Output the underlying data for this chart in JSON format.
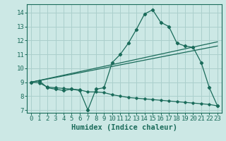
{
  "title": "",
  "xlabel": "Humidex (Indice chaleur)",
  "bg_color": "#cce8e5",
  "grid_color": "#aacfcc",
  "line_color": "#1a6b5a",
  "xlim": [
    -0.5,
    23.5
  ],
  "ylim": [
    6.8,
    14.6
  ],
  "xticks": [
    0,
    1,
    2,
    3,
    4,
    5,
    6,
    7,
    8,
    9,
    10,
    11,
    12,
    13,
    14,
    15,
    16,
    17,
    18,
    19,
    20,
    21,
    22,
    23
  ],
  "yticks": [
    7,
    8,
    9,
    10,
    11,
    12,
    13,
    14
  ],
  "line1_x": [
    0,
    1,
    2,
    3,
    4,
    5,
    6,
    7,
    8,
    9,
    10,
    11,
    12,
    13,
    14,
    15,
    16,
    17,
    18,
    19,
    20,
    21,
    22,
    23
  ],
  "line1_y": [
    9.0,
    9.1,
    8.6,
    8.5,
    8.4,
    8.5,
    8.4,
    7.0,
    8.5,
    8.6,
    10.4,
    11.0,
    11.8,
    12.8,
    13.9,
    14.2,
    13.3,
    13.0,
    11.8,
    11.6,
    11.5,
    10.4,
    8.6,
    7.3
  ],
  "line2_x": [
    0,
    23
  ],
  "line2_y": [
    9.0,
    11.9
  ],
  "line3_x": [
    0,
    23
  ],
  "line3_y": [
    9.0,
    11.6
  ],
  "line4_x": [
    0,
    1,
    2,
    3,
    4,
    5,
    6,
    7,
    8,
    9,
    10,
    11,
    12,
    13,
    14,
    15,
    16,
    17,
    18,
    19,
    20,
    21,
    22,
    23
  ],
  "line4_y": [
    9.0,
    8.95,
    8.65,
    8.6,
    8.55,
    8.5,
    8.45,
    8.3,
    8.3,
    8.25,
    8.1,
    8.0,
    7.9,
    7.85,
    7.8,
    7.75,
    7.7,
    7.65,
    7.6,
    7.55,
    7.5,
    7.45,
    7.4,
    7.3
  ],
  "tick_fontsize": 6.5,
  "xlabel_fontsize": 7.5
}
